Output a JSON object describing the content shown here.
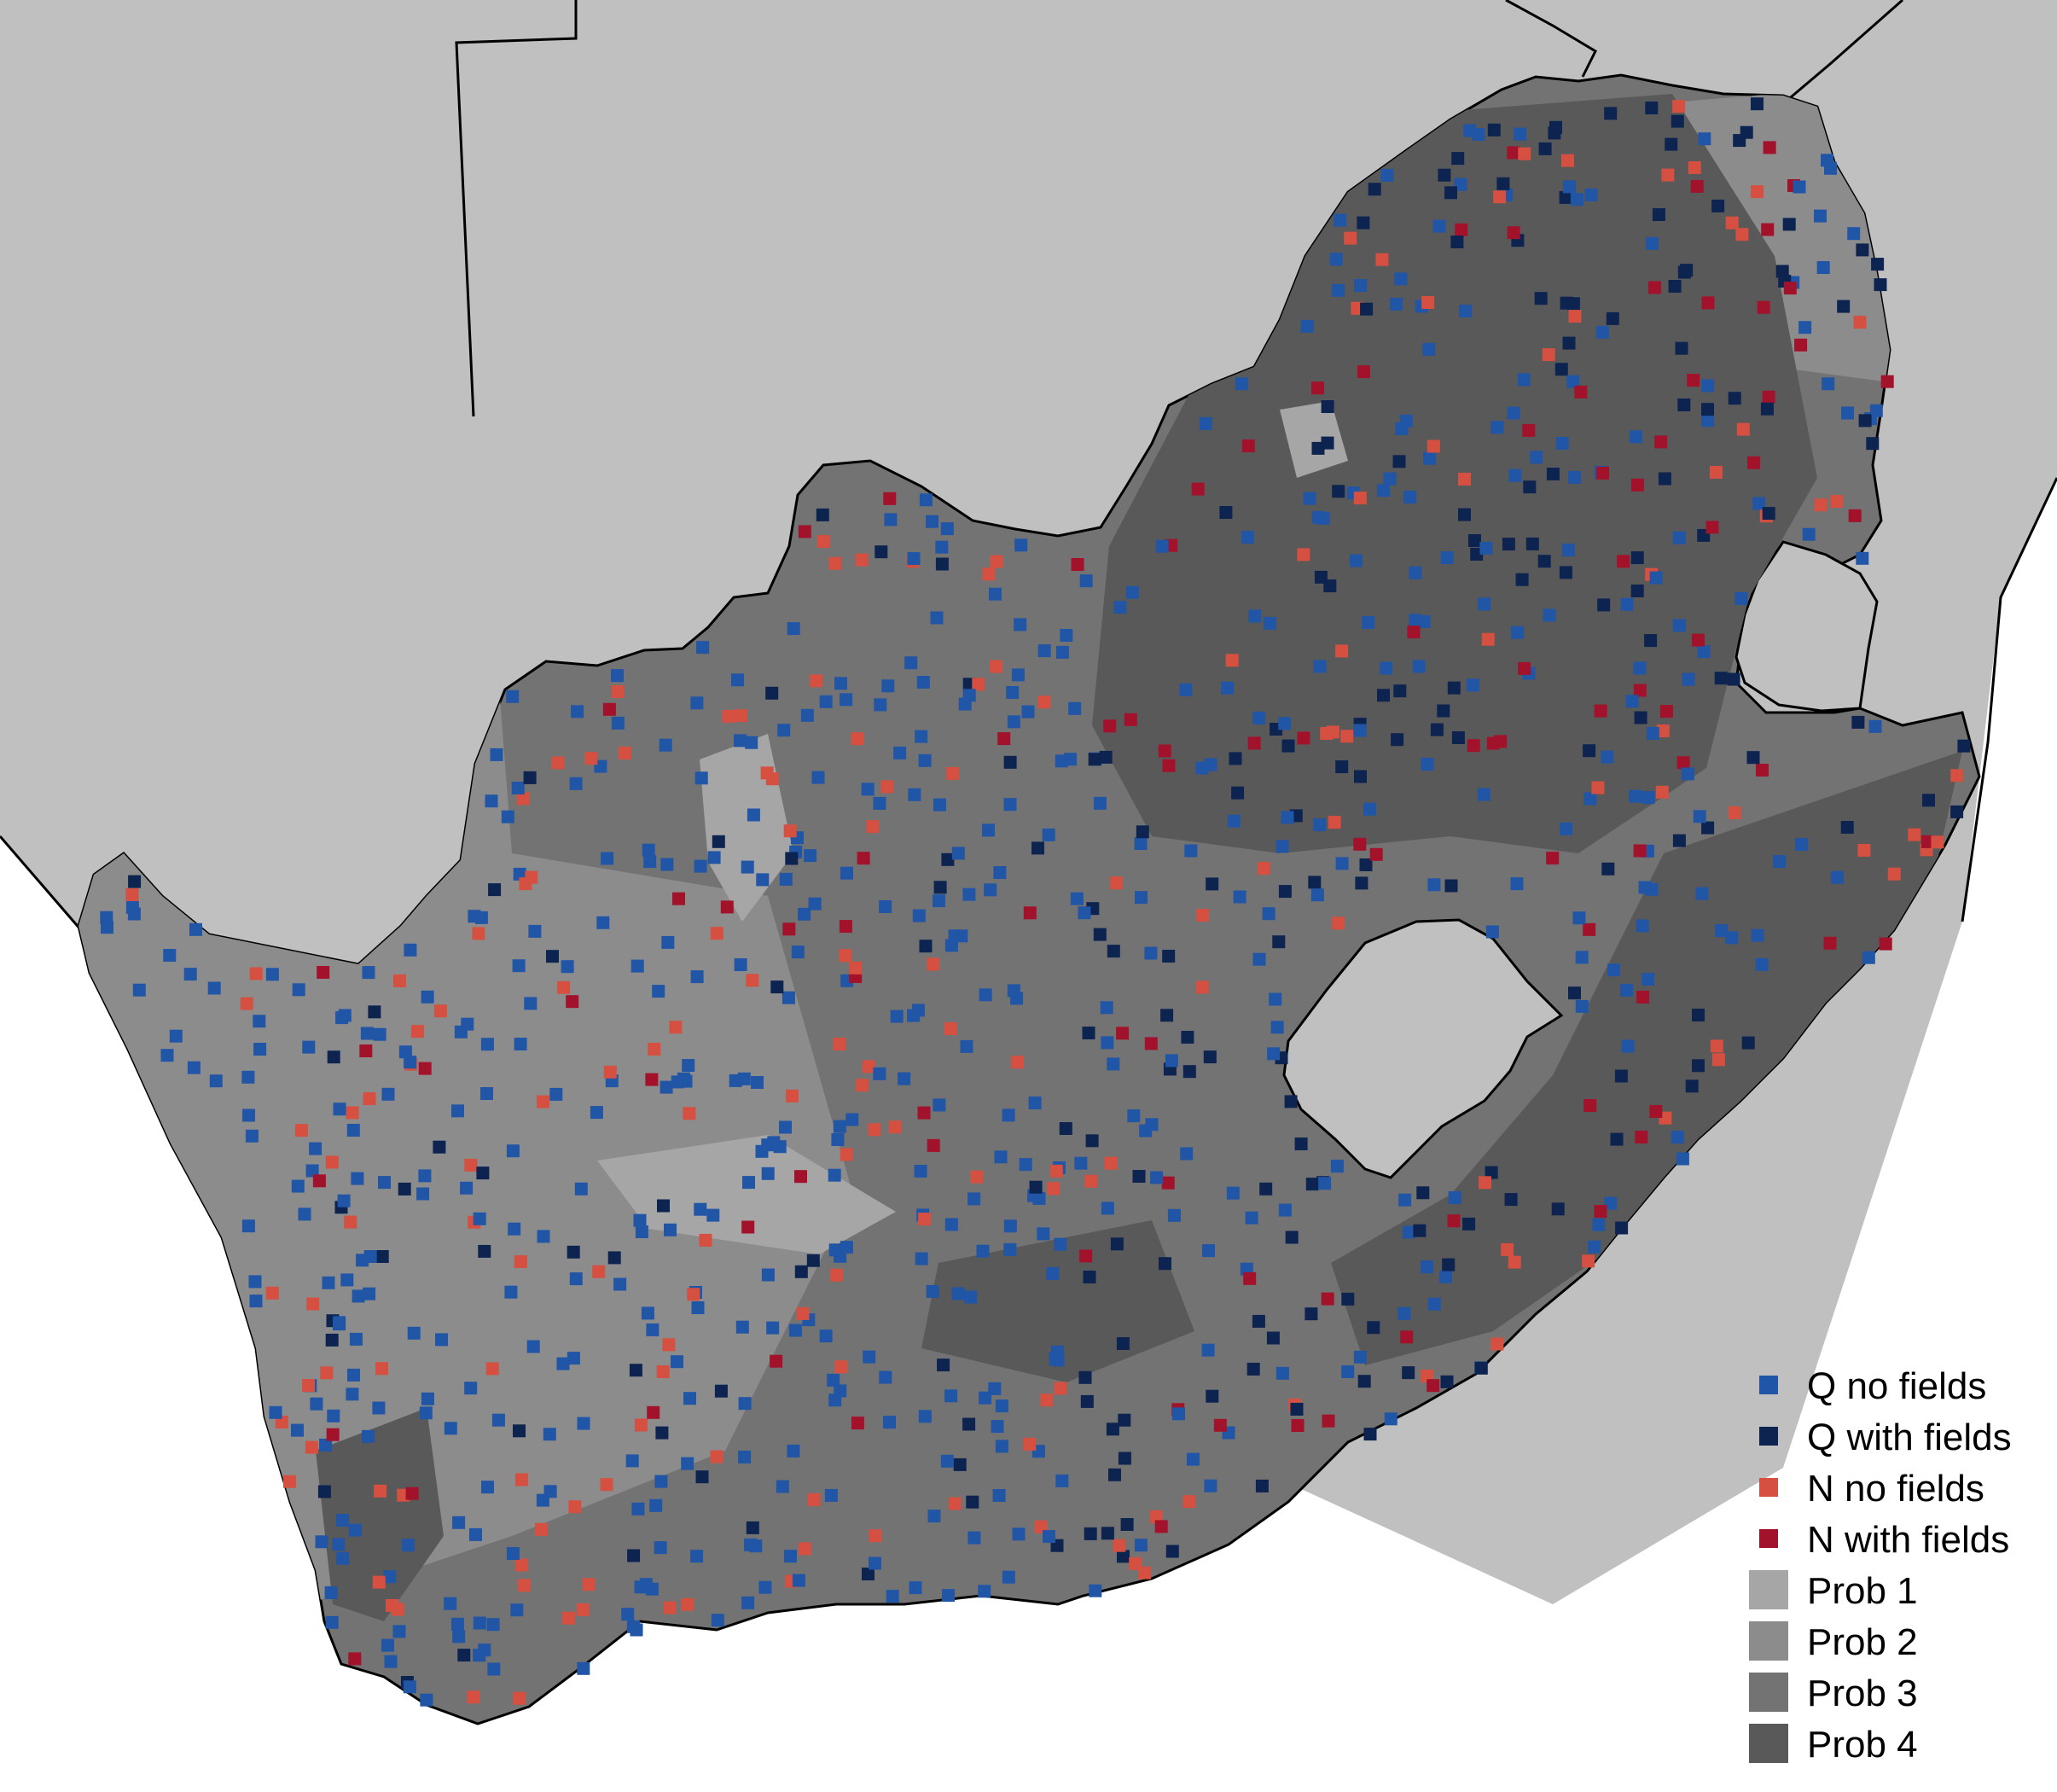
{
  "map": {
    "colors": {
      "background_land": "#c0c0c0",
      "prob_1": "#a6a6a6",
      "prob_2": "#8c8c8c",
      "prob_3": "#737373",
      "prob_4": "#595959",
      "border": "#000000"
    }
  },
  "legend": {
    "items": [
      {
        "label": "Q no fields",
        "color": "#2155a6"
      },
      {
        "label": "Q with fields",
        "color": "#0d2350"
      },
      {
        "label": "N no fields",
        "color": "#d55040"
      },
      {
        "label": "N with fields",
        "color": "#a3122b"
      },
      {
        "label": "Prob 1",
        "color": "#a6a6a6"
      },
      {
        "label": "Prob 2",
        "color": "#8c8c8c"
      },
      {
        "label": "Prob 3",
        "color": "#737373"
      },
      {
        "label": "Prob 4",
        "color": "#595959"
      }
    ]
  }
}
